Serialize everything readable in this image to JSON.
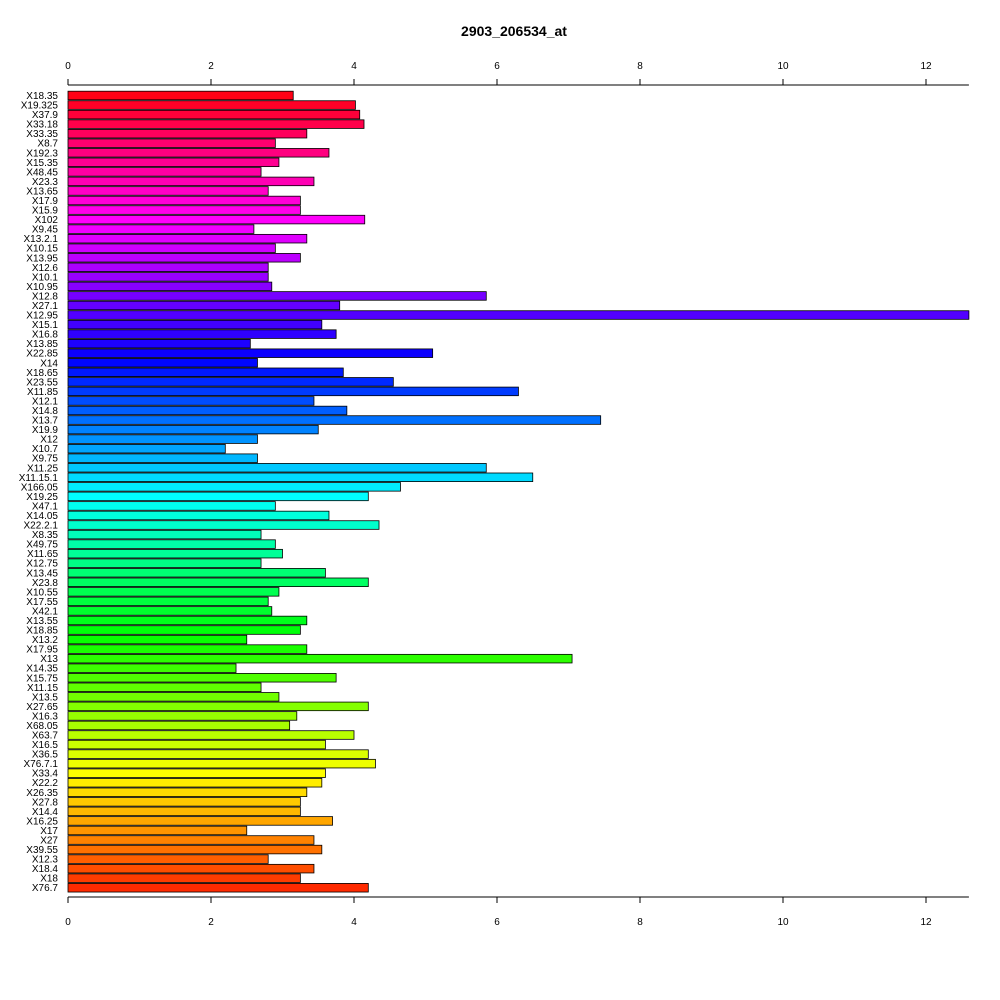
{
  "chart_data": {
    "type": "bar",
    "orientation": "horizontal",
    "title": "2903_206534_at",
    "xlabel": "",
    "ylabel": "",
    "xlim": [
      0,
      12.6
    ],
    "x_ticks": [
      "0",
      "2",
      "4",
      "6",
      "8",
      "10",
      "12"
    ],
    "grid": false,
    "legend": "none",
    "colormap": "rainbow",
    "categories": [
      "X18.35",
      "X19.325",
      "X37.9",
      "X33.18",
      "X33.35",
      "X8.7",
      "X192.3",
      "X15.35",
      "X48.45",
      "X23.3",
      "X13.65",
      "X17.9",
      "X15.9",
      "X102",
      "X9.45",
      "X13.2.1",
      "X10.15",
      "X13.95",
      "X12.6",
      "X10.1",
      "X10.95",
      "X12.8",
      "X27.1",
      "X12.95",
      "X15.1",
      "X16.8",
      "X13.85",
      "X22.85",
      "X14",
      "X18.65",
      "X23.55",
      "X11.85",
      "X12.1",
      "X14.8",
      "X13.7",
      "X19.9",
      "X12",
      "X10.7",
      "X9.75",
      "X11.25",
      "X11.15.1",
      "X166.05",
      "X19.25",
      "X47.1",
      "X14.05",
      "X22.2.1",
      "X8.35",
      "X49.75",
      "X11.65",
      "X12.75",
      "X13.45",
      "X23.8",
      "X10.55",
      "X17.55",
      "X42.1",
      "X13.55",
      "X18.85",
      "X13.2",
      "X17.95",
      "X13",
      "X14.35",
      "X15.75",
      "X11.15",
      "X13.5",
      "X27.65",
      "X16.3",
      "X68.05",
      "X63.7",
      "X16.5",
      "X36.5",
      "X76.7.1",
      "X33.4",
      "X22.2",
      "X26.35",
      "X27.8",
      "X14.4",
      "X16.25",
      "X17",
      "X27",
      "X39.55",
      "X12.3",
      "X18.4",
      "X18",
      "X76.7"
    ],
    "values": [
      3.15,
      4.02,
      4.08,
      4.14,
      3.34,
      2.9,
      3.65,
      2.95,
      2.7,
      3.44,
      2.8,
      3.25,
      3.25,
      4.15,
      2.6,
      3.34,
      2.9,
      3.25,
      2.8,
      2.8,
      2.85,
      5.85,
      3.8,
      12.6,
      3.55,
      3.75,
      2.55,
      5.1,
      2.65,
      3.85,
      4.55,
      6.3,
      3.44,
      3.9,
      7.45,
      3.5,
      2.65,
      2.2,
      2.65,
      5.85,
      6.5,
      4.65,
      4.2,
      2.9,
      3.65,
      4.35,
      2.7,
      2.9,
      3.0,
      2.7,
      3.6,
      4.2,
      2.95,
      2.8,
      2.85,
      3.34,
      3.25,
      2.5,
      3.34,
      7.05,
      2.35,
      3.75,
      2.7,
      2.95,
      4.2,
      3.2,
      3.1,
      4.0,
      3.6,
      4.2,
      4.3,
      3.6,
      3.55,
      3.34,
      3.25,
      3.25,
      3.7,
      2.5,
      3.44,
      3.55,
      2.8,
      3.44,
      3.25,
      4.2
    ]
  }
}
